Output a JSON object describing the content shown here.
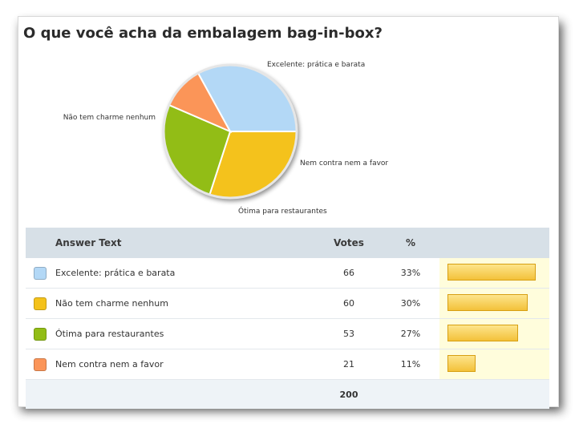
{
  "poll": {
    "question": "O que você acha da embalagem bag-in-box?",
    "columns": {
      "answer": "Answer Text",
      "votes": "Votes",
      "percent": "%"
    },
    "total": "200"
  },
  "chart_data": {
    "type": "pie",
    "title": "O que você acha da embalagem bag-in-box?",
    "categories": [
      "Excelente: prática e barata",
      "Não tem charme nenhum",
      "Ótima para restaurantes",
      "Nem contra nem a favor"
    ],
    "values": [
      66,
      60,
      53,
      21
    ],
    "percent_labels": [
      "33%",
      "30%",
      "27%",
      "11%"
    ],
    "colors": [
      "#b3d8f6",
      "#f4c21b",
      "#92bd16",
      "#fb9559"
    ],
    "total": 200
  }
}
